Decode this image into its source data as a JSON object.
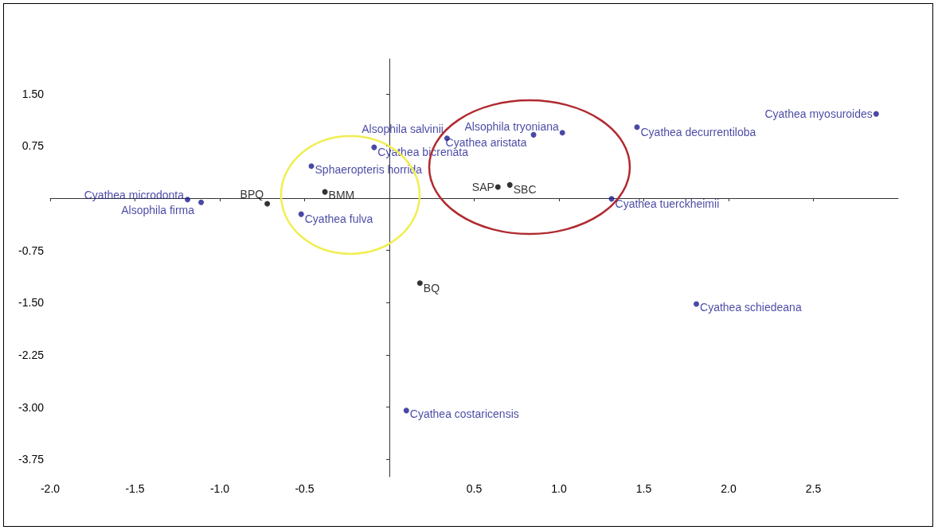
{
  "chart_data": {
    "type": "scatter",
    "xlim": [
      -2.0,
      3.0
    ],
    "ylim": [
      -4.0,
      2.0
    ],
    "xticks": [
      {
        "value": -2.0,
        "label": "-2.0"
      },
      {
        "value": -1.5,
        "label": "-1.5"
      },
      {
        "value": -1.0,
        "label": "-1.0"
      },
      {
        "value": -0.5,
        "label": "-0.5"
      },
      {
        "value": 0.5,
        "label": "0.5"
      },
      {
        "value": 1.0,
        "label": "1.0"
      },
      {
        "value": 1.5,
        "label": "1.5"
      },
      {
        "value": 2.0,
        "label": "2.0"
      },
      {
        "value": 2.5,
        "label": "2.5"
      }
    ],
    "yticks": [
      {
        "value": 1.5,
        "label": "1.50"
      },
      {
        "value": 0.75,
        "label": "0.75"
      },
      {
        "value": -0.75,
        "label": "-0.75"
      },
      {
        "value": -1.5,
        "label": "-1.50"
      },
      {
        "value": -2.25,
        "label": "-2.25"
      },
      {
        "value": -3.0,
        "label": "-3.00"
      },
      {
        "value": -3.75,
        "label": "-3.75"
      }
    ],
    "grid": false,
    "marker": "circle",
    "series": [
      {
        "color": "#1c1c8f",
        "x": [
          -1.19,
          -1.11,
          -0.52,
          -0.46,
          0.34,
          -0.09,
          0.85,
          1.02,
          1.46,
          2.87,
          1.31,
          1.81,
          0.1
        ],
        "values": [
          -0.02,
          -0.06,
          -0.23,
          0.46,
          0.86,
          0.73,
          0.91,
          0.94,
          1.02,
          1.21,
          -0.01,
          -1.52,
          -3.05
        ],
        "value_labels": [
          "Cyathea microdonta",
          "Alsophila firma",
          "Cyathea fulva",
          "Sphaeropteris horrida",
          "Alsophila salvinii",
          "Cyathea bicrenata",
          "Cyathea aristata",
          "Alsophila tryoniana",
          "Cyathea decurrentiloba",
          "Cyathea myosuroides",
          "Cyathea tuerckheimii",
          "Cyathea schiedeana",
          "Cyathea costaricensis"
        ]
      },
      {
        "color": "#000000",
        "x": [
          -0.72,
          -0.38,
          0.64,
          0.71,
          0.18
        ],
        "values": [
          -0.08,
          0.09,
          0.16,
          0.19,
          -1.22
        ],
        "value_labels": [
          "BPQ",
          "BMM",
          "SAP",
          "SBC",
          "BQ"
        ]
      }
    ]
  }
}
